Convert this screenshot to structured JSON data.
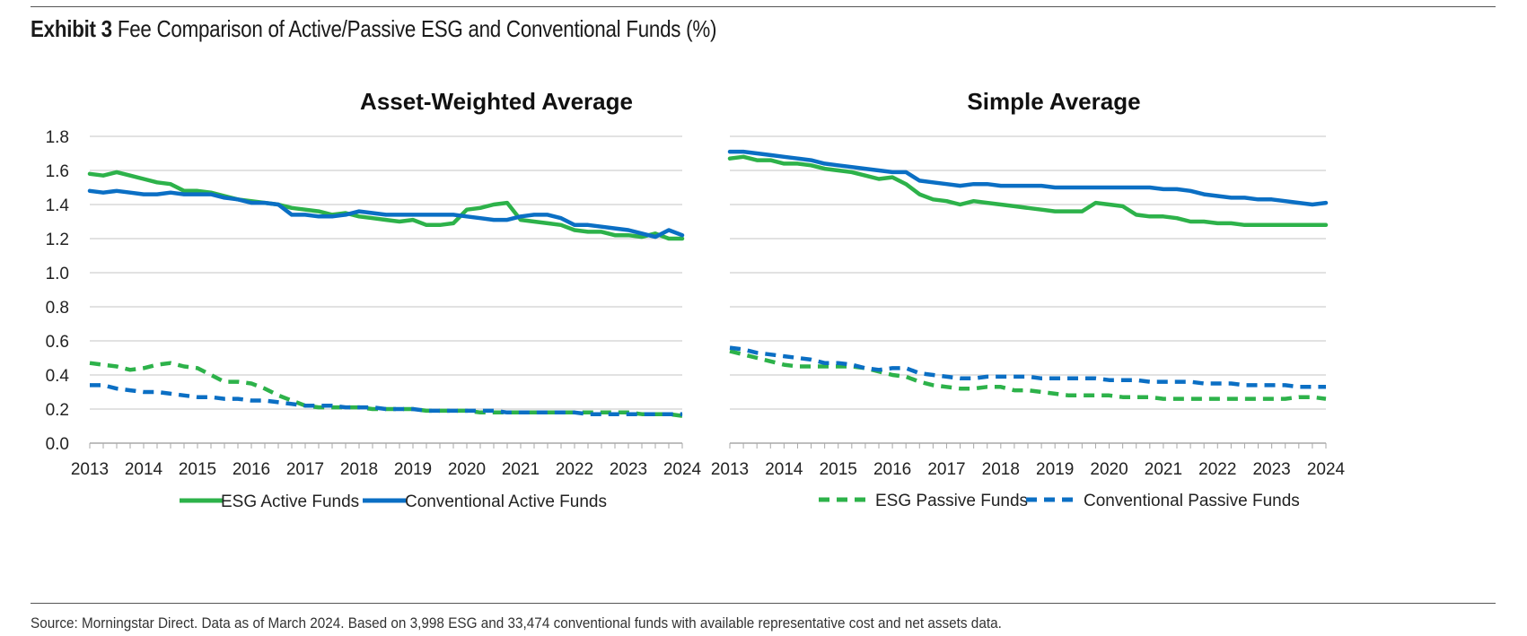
{
  "header": {
    "exhibit_label": "Exhibit 3",
    "title": "Fee Comparison of Active/Passive ESG and Conventional Funds (%)"
  },
  "source": "Source: Morningstar Direct. Data as of March 2024. Based on 3,998 ESG and 33,474 conventional funds with available representative cost and net assets data.",
  "colors": {
    "green": "#2DB24A",
    "blue": "#0B6FC4",
    "grid": "#D0D0D0",
    "axis": "#A8A8A8"
  },
  "chart_data": [
    {
      "type": "line",
      "title": "Asset-Weighted Average",
      "xlabel": "",
      "ylabel": "",
      "ylim": [
        0,
        1.8
      ],
      "yticks": [
        "0.0",
        "0.2",
        "0.4",
        "0.6",
        "0.8",
        "1.0",
        "1.2",
        "1.4",
        "1.6",
        "1.8"
      ],
      "xlim": [
        2013,
        2024
      ],
      "xticks": [
        "2013",
        "2014",
        "2015",
        "2016",
        "2017",
        "2018",
        "2019",
        "2020",
        "2021",
        "2022",
        "2023",
        "2024"
      ],
      "grid": true,
      "legend": "bottom",
      "series": [
        {
          "name": "ESG Active Funds",
          "color": "#2DB24A",
          "dash": false,
          "x": [
            2013,
            2013.25,
            2013.5,
            2013.75,
            2014,
            2014.25,
            2014.5,
            2014.75,
            2015,
            2015.25,
            2015.5,
            2015.75,
            2016,
            2016.25,
            2016.5,
            2016.75,
            2017,
            2017.25,
            2017.5,
            2017.75,
            2018,
            2018.25,
            2018.5,
            2018.75,
            2019,
            2019.25,
            2019.5,
            2019.75,
            2020,
            2020.25,
            2020.5,
            2020.75,
            2021,
            2021.25,
            2021.5,
            2021.75,
            2022,
            2022.25,
            2022.5,
            2022.75,
            2023,
            2023.25,
            2023.5,
            2023.75,
            2024
          ],
          "y": [
            1.58,
            1.57,
            1.59,
            1.57,
            1.55,
            1.53,
            1.52,
            1.48,
            1.48,
            1.47,
            1.45,
            1.43,
            1.42,
            1.41,
            1.4,
            1.38,
            1.37,
            1.36,
            1.34,
            1.35,
            1.33,
            1.32,
            1.31,
            1.3,
            1.31,
            1.28,
            1.28,
            1.29,
            1.37,
            1.38,
            1.4,
            1.41,
            1.31,
            1.3,
            1.29,
            1.28,
            1.25,
            1.24,
            1.24,
            1.22,
            1.22,
            1.21,
            1.23,
            1.2,
            1.2
          ]
        },
        {
          "name": "Conventional Active Funds",
          "color": "#0B6FC4",
          "dash": false,
          "x": [
            2013,
            2013.25,
            2013.5,
            2013.75,
            2014,
            2014.25,
            2014.5,
            2014.75,
            2015,
            2015.25,
            2015.5,
            2015.75,
            2016,
            2016.25,
            2016.5,
            2016.75,
            2017,
            2017.25,
            2017.5,
            2017.75,
            2018,
            2018.25,
            2018.5,
            2018.75,
            2019,
            2019.25,
            2019.5,
            2019.75,
            2020,
            2020.25,
            2020.5,
            2020.75,
            2021,
            2021.25,
            2021.5,
            2021.75,
            2022,
            2022.25,
            2022.5,
            2022.75,
            2023,
            2023.25,
            2023.5,
            2023.75,
            2024
          ],
          "y": [
            1.48,
            1.47,
            1.48,
            1.47,
            1.46,
            1.46,
            1.47,
            1.46,
            1.46,
            1.46,
            1.44,
            1.43,
            1.41,
            1.41,
            1.4,
            1.34,
            1.34,
            1.33,
            1.33,
            1.34,
            1.36,
            1.35,
            1.34,
            1.34,
            1.34,
            1.34,
            1.34,
            1.34,
            1.33,
            1.32,
            1.31,
            1.31,
            1.33,
            1.34,
            1.34,
            1.32,
            1.28,
            1.28,
            1.27,
            1.26,
            1.25,
            1.23,
            1.21,
            1.25,
            1.22
          ]
        },
        {
          "name": "ESG Passive Funds",
          "color": "#2DB24A",
          "dash": true,
          "x": [
            2013,
            2013.25,
            2013.5,
            2013.75,
            2014,
            2014.25,
            2014.5,
            2014.75,
            2015,
            2015.25,
            2015.5,
            2015.75,
            2016,
            2016.25,
            2016.5,
            2016.75,
            2017,
            2017.25,
            2017.5,
            2017.75,
            2018,
            2018.25,
            2018.5,
            2018.75,
            2019,
            2019.25,
            2019.5,
            2019.75,
            2020,
            2020.25,
            2020.5,
            2020.75,
            2021,
            2021.25,
            2021.5,
            2021.75,
            2022,
            2022.25,
            2022.5,
            2022.75,
            2023,
            2023.25,
            2023.5,
            2023.75,
            2024
          ],
          "y": [
            0.47,
            0.46,
            0.45,
            0.43,
            0.44,
            0.46,
            0.47,
            0.45,
            0.44,
            0.4,
            0.36,
            0.36,
            0.35,
            0.32,
            0.28,
            0.25,
            0.22,
            0.21,
            0.21,
            0.21,
            0.21,
            0.2,
            0.2,
            0.2,
            0.2,
            0.19,
            0.19,
            0.19,
            0.19,
            0.18,
            0.18,
            0.18,
            0.18,
            0.18,
            0.18,
            0.18,
            0.18,
            0.18,
            0.18,
            0.18,
            0.18,
            0.17,
            0.17,
            0.17,
            0.16
          ]
        },
        {
          "name": "Conventional Passive Funds",
          "color": "#0B6FC4",
          "dash": true,
          "x": [
            2013,
            2013.25,
            2013.5,
            2013.75,
            2014,
            2014.25,
            2014.5,
            2014.75,
            2015,
            2015.25,
            2015.5,
            2015.75,
            2016,
            2016.25,
            2016.5,
            2016.75,
            2017,
            2017.25,
            2017.5,
            2017.75,
            2018,
            2018.25,
            2018.5,
            2018.75,
            2019,
            2019.25,
            2019.5,
            2019.75,
            2020,
            2020.25,
            2020.5,
            2020.75,
            2021,
            2021.25,
            2021.5,
            2021.75,
            2022,
            2022.25,
            2022.5,
            2022.75,
            2023,
            2023.25,
            2023.5,
            2023.75,
            2024
          ],
          "y": [
            0.34,
            0.34,
            0.32,
            0.31,
            0.3,
            0.3,
            0.29,
            0.28,
            0.27,
            0.27,
            0.26,
            0.26,
            0.25,
            0.25,
            0.24,
            0.23,
            0.22,
            0.22,
            0.22,
            0.21,
            0.21,
            0.21,
            0.2,
            0.2,
            0.2,
            0.19,
            0.19,
            0.19,
            0.19,
            0.19,
            0.19,
            0.18,
            0.18,
            0.18,
            0.18,
            0.18,
            0.18,
            0.17,
            0.17,
            0.17,
            0.17,
            0.17,
            0.17,
            0.17,
            0.17
          ]
        }
      ],
      "legend_entries": [
        {
          "name": "ESG Active Funds",
          "color": "#2DB24A",
          "dash": false
        },
        {
          "name": "Conventional Active Funds",
          "color": "#0B6FC4",
          "dash": false
        }
      ]
    },
    {
      "type": "line",
      "title": "Simple Average",
      "xlabel": "",
      "ylabel": "",
      "ylim": [
        0,
        1.8
      ],
      "xlim": [
        2013,
        2024
      ],
      "xticks": [
        "2013",
        "2014",
        "2015",
        "2016",
        "2017",
        "2018",
        "2019",
        "2020",
        "2021",
        "2022",
        "2023",
        "2024"
      ],
      "grid": true,
      "legend": "bottom",
      "series": [
        {
          "name": "ESG Active Funds",
          "color": "#2DB24A",
          "dash": false,
          "x": [
            2013,
            2013.25,
            2013.5,
            2013.75,
            2014,
            2014.25,
            2014.5,
            2014.75,
            2015,
            2015.25,
            2015.5,
            2015.75,
            2016,
            2016.25,
            2016.5,
            2016.75,
            2017,
            2017.25,
            2017.5,
            2017.75,
            2018,
            2018.25,
            2018.5,
            2018.75,
            2019,
            2019.25,
            2019.5,
            2019.75,
            2020,
            2020.25,
            2020.5,
            2020.75,
            2021,
            2021.25,
            2021.5,
            2021.75,
            2022,
            2022.25,
            2022.5,
            2022.75,
            2023,
            2023.25,
            2023.5,
            2023.75,
            2024
          ],
          "y": [
            1.67,
            1.68,
            1.66,
            1.66,
            1.64,
            1.64,
            1.63,
            1.61,
            1.6,
            1.59,
            1.57,
            1.55,
            1.56,
            1.52,
            1.46,
            1.43,
            1.42,
            1.4,
            1.42,
            1.41,
            1.4,
            1.39,
            1.38,
            1.37,
            1.36,
            1.36,
            1.36,
            1.41,
            1.4,
            1.39,
            1.34,
            1.33,
            1.33,
            1.32,
            1.3,
            1.3,
            1.29,
            1.29,
            1.28,
            1.28,
            1.28,
            1.28,
            1.28,
            1.28,
            1.28
          ]
        },
        {
          "name": "Conventional Active Funds",
          "color": "#0B6FC4",
          "dash": false,
          "x": [
            2013,
            2013.25,
            2013.5,
            2013.75,
            2014,
            2014.25,
            2014.5,
            2014.75,
            2015,
            2015.25,
            2015.5,
            2015.75,
            2016,
            2016.25,
            2016.5,
            2016.75,
            2017,
            2017.25,
            2017.5,
            2017.75,
            2018,
            2018.25,
            2018.5,
            2018.75,
            2019,
            2019.25,
            2019.5,
            2019.75,
            2020,
            2020.25,
            2020.5,
            2020.75,
            2021,
            2021.25,
            2021.5,
            2021.75,
            2022,
            2022.25,
            2022.5,
            2022.75,
            2023,
            2023.25,
            2023.5,
            2023.75,
            2024
          ],
          "y": [
            1.71,
            1.71,
            1.7,
            1.69,
            1.68,
            1.67,
            1.66,
            1.64,
            1.63,
            1.62,
            1.61,
            1.6,
            1.59,
            1.59,
            1.54,
            1.53,
            1.52,
            1.51,
            1.52,
            1.52,
            1.51,
            1.51,
            1.51,
            1.51,
            1.5,
            1.5,
            1.5,
            1.5,
            1.5,
            1.5,
            1.5,
            1.5,
            1.49,
            1.49,
            1.48,
            1.46,
            1.45,
            1.44,
            1.44,
            1.43,
            1.43,
            1.42,
            1.41,
            1.4,
            1.41
          ]
        },
        {
          "name": "ESG Passive Funds",
          "color": "#2DB24A",
          "dash": true,
          "x": [
            2013,
            2013.25,
            2013.5,
            2013.75,
            2014,
            2014.25,
            2014.5,
            2014.75,
            2015,
            2015.25,
            2015.5,
            2015.75,
            2016,
            2016.25,
            2016.5,
            2016.75,
            2017,
            2017.25,
            2017.5,
            2017.75,
            2018,
            2018.25,
            2018.5,
            2018.75,
            2019,
            2019.25,
            2019.5,
            2019.75,
            2020,
            2020.25,
            2020.5,
            2020.75,
            2021,
            2021.25,
            2021.5,
            2021.75,
            2022,
            2022.25,
            2022.5,
            2022.75,
            2023,
            2023.25,
            2023.5,
            2023.75,
            2024
          ],
          "y": [
            0.54,
            0.52,
            0.5,
            0.48,
            0.46,
            0.45,
            0.45,
            0.45,
            0.45,
            0.45,
            0.44,
            0.42,
            0.4,
            0.39,
            0.36,
            0.34,
            0.33,
            0.32,
            0.32,
            0.33,
            0.33,
            0.31,
            0.31,
            0.3,
            0.29,
            0.28,
            0.28,
            0.28,
            0.28,
            0.27,
            0.27,
            0.27,
            0.26,
            0.26,
            0.26,
            0.26,
            0.26,
            0.26,
            0.26,
            0.26,
            0.26,
            0.26,
            0.27,
            0.27,
            0.26
          ]
        },
        {
          "name": "Conventional Passive Funds",
          "color": "#0B6FC4",
          "dash": true,
          "x": [
            2013,
            2013.25,
            2013.5,
            2013.75,
            2014,
            2014.25,
            2014.5,
            2014.75,
            2015,
            2015.25,
            2015.5,
            2015.75,
            2016,
            2016.25,
            2016.5,
            2016.75,
            2017,
            2017.25,
            2017.5,
            2017.75,
            2018,
            2018.25,
            2018.5,
            2018.75,
            2019,
            2019.25,
            2019.5,
            2019.75,
            2020,
            2020.25,
            2020.5,
            2020.75,
            2021,
            2021.25,
            2021.5,
            2021.75,
            2022,
            2022.25,
            2022.5,
            2022.75,
            2023,
            2023.25,
            2023.5,
            2023.75,
            2024
          ],
          "y": [
            0.56,
            0.55,
            0.53,
            0.52,
            0.51,
            0.5,
            0.49,
            0.47,
            0.47,
            0.46,
            0.44,
            0.43,
            0.44,
            0.44,
            0.41,
            0.4,
            0.39,
            0.38,
            0.38,
            0.39,
            0.39,
            0.39,
            0.39,
            0.38,
            0.38,
            0.38,
            0.38,
            0.38,
            0.37,
            0.37,
            0.37,
            0.36,
            0.36,
            0.36,
            0.36,
            0.35,
            0.35,
            0.35,
            0.34,
            0.34,
            0.34,
            0.34,
            0.33,
            0.33,
            0.33
          ]
        }
      ],
      "legend_entries": [
        {
          "name": "ESG Passive Funds",
          "color": "#2DB24A",
          "dash": true
        },
        {
          "name": "Conventional Passive Funds",
          "color": "#0B6FC4",
          "dash": true
        }
      ]
    }
  ]
}
